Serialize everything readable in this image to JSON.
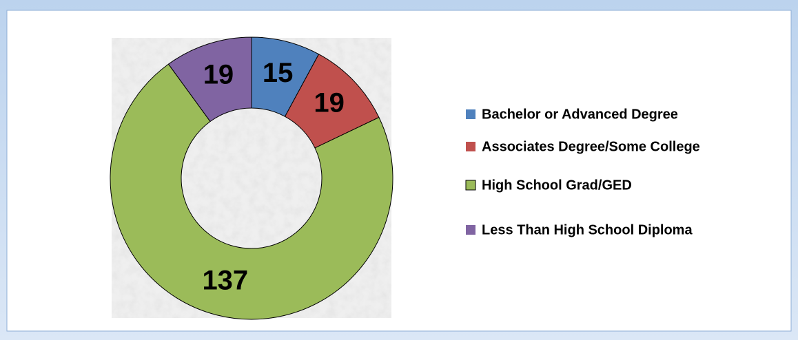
{
  "chart_data": {
    "type": "donut",
    "categories": [
      "Bachelor or Advanced Degree",
      "Associates Degree/Some College",
      "High School Grad/GED",
      "Less Than High School Diploma"
    ],
    "values": [
      15,
      19,
      137,
      19
    ],
    "colors": [
      "#4f81bd",
      "#c0504d",
      "#9bbb59",
      "#8064a2"
    ],
    "legend": "right"
  }
}
